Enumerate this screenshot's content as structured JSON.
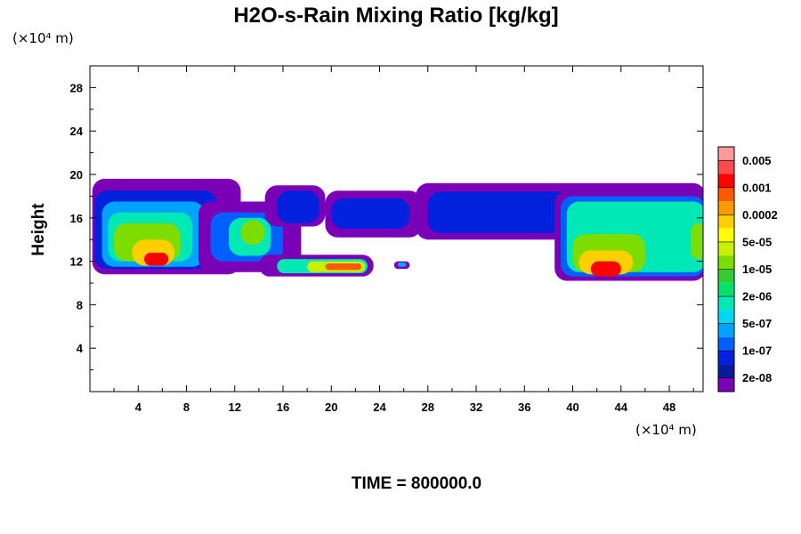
{
  "chart_data": {
    "type": "contour",
    "title": "H2O-s-Rain Mixing Ratio [kg/kg]",
    "xlabel": "",
    "ylabel": "Height",
    "x_unit_label": "(×10⁴ m)",
    "y_unit_label": "(×10⁴ m)",
    "xlim": [
      0,
      50.8
    ],
    "ylim": [
      0,
      30
    ],
    "x_ticks": [
      4,
      8,
      12,
      16,
      20,
      24,
      28,
      32,
      36,
      40,
      44,
      48
    ],
    "y_ticks": [
      4,
      8,
      12,
      16,
      20,
      24,
      28
    ],
    "x_tick_labels": [
      "4",
      "8",
      "12",
      "16",
      "20",
      "24",
      "28",
      "32",
      "36",
      "40",
      "44",
      "48"
    ],
    "y_tick_labels": [
      "4",
      "8",
      "12",
      "16",
      "20",
      "24",
      "28"
    ],
    "time_label": "TIME = 800000.0",
    "colorbar": {
      "colors": [
        "#ff9a9a",
        "#ff4b4b",
        "#ff0000",
        "#ff5a00",
        "#ff9900",
        "#ffd000",
        "#ffff00",
        "#c8f000",
        "#7ddc00",
        "#33cc33",
        "#00e26a",
        "#00e8b4",
        "#00d8f0",
        "#00a4ff",
        "#0060ff",
        "#0022dd",
        "#0a1a9a",
        "#7a00b8"
      ],
      "labels": [
        "0.005",
        "0.001",
        "0.0002",
        "5e-05",
        "1e-05",
        "2e-06",
        "5e-07",
        "1e-07",
        "2e-08"
      ]
    },
    "regions": [
      {
        "level": 0,
        "x": [
          0.2,
          12.5
        ],
        "y": [
          10.8,
          19.6
        ]
      },
      {
        "level": 2,
        "x": [
          0.4,
          10.5
        ],
        "y": [
          11.3,
          18.5
        ]
      },
      {
        "level": 4,
        "x": [
          1.0,
          9.5
        ],
        "y": [
          11.5,
          17.5
        ]
      },
      {
        "level": 6,
        "x": [
          1.5,
          8.5
        ],
        "y": [
          12.0,
          16.5
        ]
      },
      {
        "level": 9,
        "x": [
          2.0,
          7.5
        ],
        "y": [
          12.0,
          15.5
        ]
      },
      {
        "level": 12,
        "x": [
          3.5,
          7.0
        ],
        "y": [
          11.6,
          14.0
        ]
      },
      {
        "level": 15,
        "x": [
          4.5,
          6.5
        ],
        "y": [
          11.6,
          12.8
        ]
      },
      {
        "level": 0,
        "x": [
          9.0,
          17.5
        ],
        "y": [
          11.0,
          17.5
        ]
      },
      {
        "level": 3,
        "x": [
          10.0,
          16.0
        ],
        "y": [
          12.0,
          16.5
        ]
      },
      {
        "level": 6,
        "x": [
          11.5,
          15.0
        ],
        "y": [
          12.5,
          16.0
        ]
      },
      {
        "level": 9,
        "x": [
          12.5,
          14.5
        ],
        "y": [
          13.5,
          15.8
        ]
      },
      {
        "level": 0,
        "x": [
          14.5,
          19.5
        ],
        "y": [
          15.2,
          19.0
        ]
      },
      {
        "level": 2,
        "x": [
          15.5,
          19.0
        ],
        "y": [
          15.5,
          18.5
        ]
      },
      {
        "level": 0,
        "x": [
          19.5,
          27.5
        ],
        "y": [
          14.2,
          18.5
        ]
      },
      {
        "level": 2,
        "x": [
          20.0,
          26.5
        ],
        "y": [
          15.0,
          17.8
        ]
      },
      {
        "level": 0,
        "x": [
          14.0,
          23.5
        ],
        "y": [
          10.6,
          12.6
        ]
      },
      {
        "level": 6,
        "x": [
          15.5,
          23.0
        ],
        "y": [
          10.9,
          12.2
        ]
      },
      {
        "level": 10,
        "x": [
          18.0,
          22.8
        ],
        "y": [
          11.0,
          12.0
        ]
      },
      {
        "level": 14,
        "x": [
          19.5,
          22.5
        ],
        "y": [
          11.2,
          11.8
        ]
      },
      {
        "level": 0,
        "x": [
          25.2,
          26.5
        ],
        "y": [
          11.3,
          12.0
        ]
      },
      {
        "level": 4,
        "x": [
          25.5,
          26.2
        ],
        "y": [
          11.5,
          11.9
        ]
      },
      {
        "level": 0,
        "x": [
          27.0,
          51.0
        ],
        "y": [
          14.0,
          19.2
        ]
      },
      {
        "level": 2,
        "x": [
          28.0,
          50.0
        ],
        "y": [
          14.6,
          18.4
        ]
      },
      {
        "level": 0,
        "x": [
          38.5,
          51.0
        ],
        "y": [
          10.2,
          18.5
        ]
      },
      {
        "level": 3,
        "x": [
          39.0,
          51.0
        ],
        "y": [
          10.6,
          18.0
        ]
      },
      {
        "level": 6,
        "x": [
          39.5,
          51.0
        ],
        "y": [
          11.0,
          17.5
        ]
      },
      {
        "level": 9,
        "x": [
          40.0,
          46.0
        ],
        "y": [
          11.0,
          14.5
        ]
      },
      {
        "level": 12,
        "x": [
          40.5,
          45.0
        ],
        "y": [
          10.8,
          13.0
        ]
      },
      {
        "level": 15,
        "x": [
          41.5,
          44.0
        ],
        "y": [
          10.6,
          12.0
        ]
      },
      {
        "level": 6,
        "x": [
          49.0,
          51.0
        ],
        "y": [
          12.0,
          17.0
        ]
      },
      {
        "level": 9,
        "x": [
          49.8,
          51.0
        ],
        "y": [
          12.2,
          15.5
        ]
      }
    ]
  }
}
